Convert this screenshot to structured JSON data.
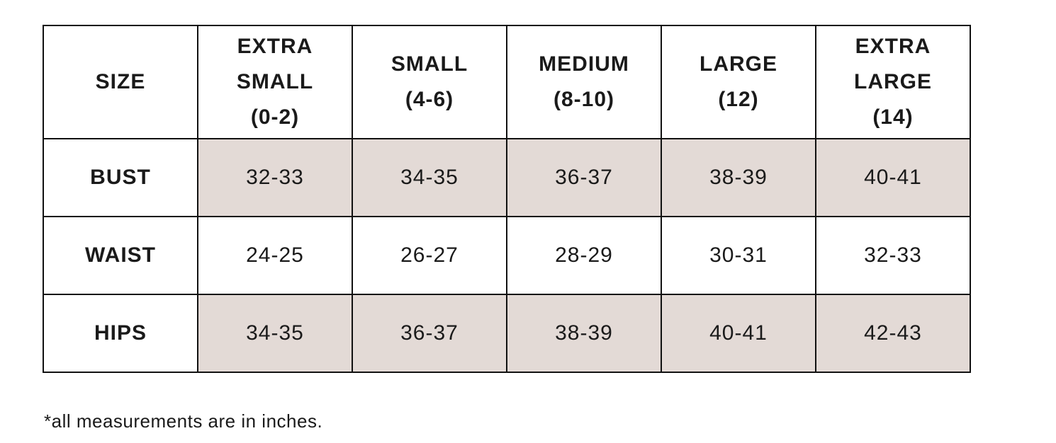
{
  "table": {
    "corner_label": "SIZE",
    "columns": [
      {
        "name": "EXTRA SMALL",
        "range": "(0-2)"
      },
      {
        "name": "SMALL",
        "range": "(4-6)"
      },
      {
        "name": "MEDIUM",
        "range": "(8-10)"
      },
      {
        "name": "LARGE",
        "range": "(12)"
      },
      {
        "name": "EXTRA LARGE",
        "range": "(14)"
      }
    ],
    "rows": [
      {
        "label": "BUST",
        "values": [
          "32-33",
          "34-35",
          "36-37",
          "38-39",
          "40-41"
        ]
      },
      {
        "label": "WAIST",
        "values": [
          "24-25",
          "26-27",
          "28-29",
          "30-31",
          "32-33"
        ]
      },
      {
        "label": "HIPS",
        "values": [
          "34-35",
          "36-37",
          "38-39",
          "40-41",
          "42-43"
        ]
      }
    ],
    "shaded_row_color": "#e3dad6"
  },
  "footnote": "*all measurements are in inches."
}
